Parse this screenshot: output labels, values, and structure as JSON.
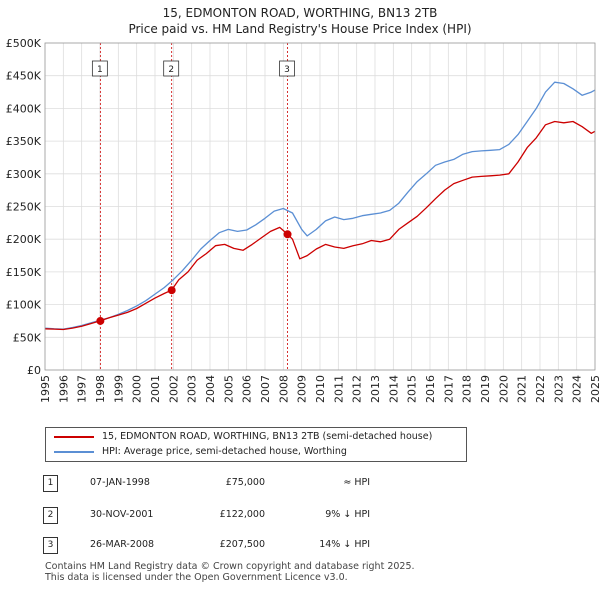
{
  "chart_data": {
    "type": "line",
    "title": "15, EDMONTON ROAD, WORTHING, BN13 2TB",
    "subtitle": "Price paid vs. HM Land Registry's House Price Index (HPI)",
    "xlabel": "",
    "ylabel": "",
    "xlim": [
      1995,
      2025
    ],
    "ylim": [
      0,
      500000
    ],
    "y_ticks": [
      {
        "value": 0,
        "label": "£0"
      },
      {
        "value": 50000,
        "label": "£50K"
      },
      {
        "value": 100000,
        "label": "£100K"
      },
      {
        "value": 150000,
        "label": "£150K"
      },
      {
        "value": 200000,
        "label": "£200K"
      },
      {
        "value": 250000,
        "label": "£250K"
      },
      {
        "value": 300000,
        "label": "£300K"
      },
      {
        "value": 350000,
        "label": "£350K"
      },
      {
        "value": 400000,
        "label": "£400K"
      },
      {
        "value": 450000,
        "label": "£450K"
      },
      {
        "value": 500000,
        "label": "£500K"
      }
    ],
    "x_ticks": [
      "1995",
      "1996",
      "1997",
      "1998",
      "1999",
      "2000",
      "2001",
      "2002",
      "2003",
      "2004",
      "2005",
      "2006",
      "2007",
      "2008",
      "2009",
      "2010",
      "2011",
      "2012",
      "2013",
      "2014",
      "2015",
      "2016",
      "2017",
      "2018",
      "2019",
      "2020",
      "2021",
      "2022",
      "2023",
      "2024",
      "2025"
    ],
    "grid": true,
    "legend_position": "below",
    "series": [
      {
        "name": "15, EDMONTON ROAD, WORTHING, BN13 2TB (semi-detached house)",
        "color": "#cc0000",
        "x": [
          1995.0,
          1995.5,
          1996.0,
          1996.5,
          1997.0,
          1997.5,
          1998.0,
          1998.5,
          1999.0,
          1999.5,
          2000.0,
          2000.5,
          2001.0,
          2001.5,
          2001.9,
          2002.3,
          2002.8,
          2003.3,
          2003.8,
          2004.3,
          2004.8,
          2005.3,
          2005.8,
          2006.3,
          2006.8,
          2007.3,
          2007.8,
          2008.23,
          2008.5,
          2008.9,
          2009.3,
          2009.8,
          2010.3,
          2010.8,
          2011.3,
          2011.8,
          2012.3,
          2012.8,
          2013.3,
          2013.8,
          2014.3,
          2014.8,
          2015.3,
          2015.8,
          2016.3,
          2016.8,
          2017.3,
          2017.8,
          2018.3,
          2018.8,
          2019.3,
          2019.8,
          2020.3,
          2020.8,
          2021.3,
          2021.8,
          2022.3,
          2022.8,
          2023.3,
          2023.8,
          2024.3,
          2024.8,
          2025.0
        ],
        "values": [
          63000,
          62500,
          62000,
          64000,
          67000,
          71000,
          75000,
          80000,
          84000,
          88000,
          94000,
          102000,
          110000,
          117000,
          122000,
          138000,
          150000,
          168000,
          178000,
          190000,
          192000,
          186000,
          183000,
          192000,
          202000,
          212000,
          218000,
          207500,
          200000,
          170000,
          175000,
          185000,
          192000,
          188000,
          186000,
          190000,
          193000,
          198000,
          196000,
          200000,
          215000,
          225000,
          235000,
          248000,
          262000,
          275000,
          285000,
          290000,
          295000,
          296000,
          297000,
          298000,
          300000,
          318000,
          340000,
          355000,
          375000,
          380000,
          378000,
          380000,
          372000,
          362000,
          365000
        ]
      },
      {
        "name": "HPI: Average price, semi-detached house, Worthing",
        "color": "#5b8fd4",
        "x": [
          1995.0,
          1995.5,
          1996.0,
          1996.5,
          1997.0,
          1997.5,
          1998.0,
          1998.5,
          1999.0,
          1999.5,
          2000.0,
          2000.5,
          2001.0,
          2001.5,
          2002.0,
          2002.5,
          2003.0,
          2003.5,
          2004.0,
          2004.5,
          2005.0,
          2005.5,
          2006.0,
          2006.5,
          2007.0,
          2007.5,
          2008.0,
          2008.5,
          2009.0,
          2009.3,
          2009.8,
          2010.3,
          2010.8,
          2011.3,
          2011.8,
          2012.3,
          2012.8,
          2013.3,
          2013.8,
          2014.3,
          2014.8,
          2015.3,
          2015.8,
          2016.3,
          2016.8,
          2017.3,
          2017.8,
          2018.3,
          2018.8,
          2019.3,
          2019.8,
          2020.3,
          2020.8,
          2021.3,
          2021.8,
          2022.3,
          2022.8,
          2023.3,
          2023.8,
          2024.3,
          2024.8,
          2025.0
        ],
        "values": [
          64000,
          63000,
          62500,
          65000,
          68000,
          72000,
          76000,
          80000,
          85000,
          91000,
          98000,
          106000,
          116000,
          126000,
          138000,
          152000,
          168000,
          185000,
          198000,
          210000,
          215000,
          212000,
          214000,
          222000,
          232000,
          243000,
          247000,
          240000,
          215000,
          205000,
          215000,
          228000,
          234000,
          230000,
          232000,
          236000,
          238000,
          240000,
          244000,
          255000,
          272000,
          288000,
          300000,
          313000,
          318000,
          322000,
          330000,
          334000,
          335000,
          336000,
          337000,
          345000,
          360000,
          380000,
          400000,
          425000,
          440000,
          438000,
          430000,
          420000,
          425000,
          428000
        ]
      }
    ],
    "annotations": [
      {
        "label": "1",
        "x": 1998.02,
        "value": 75000
      },
      {
        "label": "2",
        "x": 2001.91,
        "value": 122000
      },
      {
        "label": "3",
        "x": 2008.23,
        "value": 207500
      }
    ]
  },
  "legend": {
    "items": [
      {
        "label": "15, EDMONTON ROAD, WORTHING, BN13 2TB (semi-detached house)",
        "color": "#cc0000"
      },
      {
        "label": "HPI: Average price, semi-detached house, Worthing",
        "color": "#5b8fd4"
      }
    ]
  },
  "sales": [
    {
      "num": "1",
      "date": "07-JAN-1998",
      "price": "£75,000",
      "hpi": "≈ HPI"
    },
    {
      "num": "2",
      "date": "30-NOV-2001",
      "price": "£122,000",
      "hpi": "9% ↓ HPI"
    },
    {
      "num": "3",
      "date": "26-MAR-2008",
      "price": "£207,500",
      "hpi": "14% ↓ HPI"
    }
  ],
  "footer": {
    "line1": "Contains HM Land Registry data © Crown copyright and database right 2025.",
    "line2": "This data is licensed under the Open Government Licence v3.0."
  }
}
